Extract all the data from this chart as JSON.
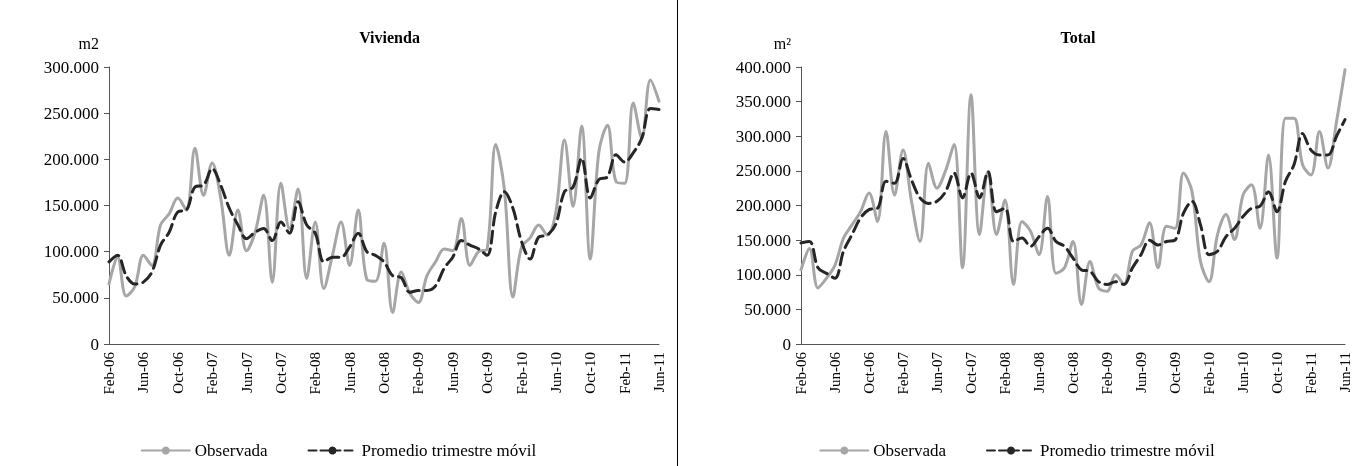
{
  "chart_data": [
    {
      "type": "line",
      "title": "Vivienda",
      "ylabel": "m2",
      "categories": [
        "Feb-06",
        null,
        null,
        null,
        "Jun-06",
        null,
        null,
        null,
        "Oct-06",
        null,
        null,
        null,
        "Feb-07",
        null,
        null,
        null,
        "Jun-07",
        null,
        null,
        null,
        "Oct-07",
        null,
        null,
        null,
        "Feb-08",
        null,
        null,
        null,
        "Jun-08",
        null,
        null,
        null,
        "Oct-08",
        null,
        null,
        null,
        "Feb-09",
        null,
        null,
        null,
        "Jun-09",
        null,
        null,
        null,
        "Oct-09",
        null,
        null,
        null,
        "Feb-10",
        null,
        null,
        null,
        "Jun-10",
        null,
        null,
        null,
        "Oct-10",
        null,
        null,
        null,
        "Feb-11",
        null,
        null,
        null,
        "Jun-11"
      ],
      "series": [
        {
          "name": "Observada",
          "color": "#a6a6a6",
          "line_style": "solid",
          "values": [
            65000,
            94000,
            52000,
            62000,
            96000,
            85000,
            129000,
            141000,
            158000,
            145000,
            212000,
            161000,
            196000,
            158000,
            96000,
            145000,
            101000,
            121000,
            161000,
            67000,
            174000,
            125000,
            168000,
            71000,
            132000,
            60000,
            96000,
            132000,
            85000,
            145000,
            70000,
            68000,
            109000,
            34000,
            78000,
            55000,
            45000,
            74000,
            89000,
            103000,
            101000,
            136000,
            85000,
            100000,
            103000,
            216000,
            168000,
            51000,
            105000,
            115000,
            129000,
            118000,
            143000,
            221000,
            149000,
            236000,
            92000,
            208000,
            237000,
            176000,
            174000,
            261000,
            223000,
            286000,
            263000
          ]
        },
        {
          "name": "Promedio trimestre móvil",
          "color": "#262626",
          "line_style": "dashed",
          "values": [
            89000,
            96000,
            74000,
            65000,
            67000,
            78000,
            107000,
            121000,
            143000,
            145000,
            170000,
            172000,
            190000,
            172000,
            147000,
            129000,
            114000,
            121000,
            125000,
            112000,
            132000,
            120000,
            154000,
            129000,
            120000,
            89000,
            94000,
            94000,
            105000,
            120000,
            100000,
            96000,
            89000,
            74000,
            72000,
            56000,
            58000,
            58000,
            63000,
            82000,
            94000,
            112000,
            107000,
            103000,
            96000,
            143000,
            165000,
            147000,
            111000,
            92000,
            116000,
            118000,
            130000,
            165000,
            170000,
            201000,
            158000,
            178000,
            181000,
            205000,
            197000,
            207000,
            223000,
            255000,
            254000
          ]
        }
      ],
      "ylim": [
        0,
        300000
      ],
      "yticks": [
        {
          "value": 0,
          "label": "0"
        },
        {
          "value": 50000,
          "label": "50.000"
        },
        {
          "value": 100000,
          "label": "100.000"
        },
        {
          "value": 150000,
          "label": "150.000"
        },
        {
          "value": 200000,
          "label": "200.000"
        },
        {
          "value": 250000,
          "label": "250.000"
        },
        {
          "value": 300000,
          "label": "300.000"
        }
      ],
      "grid": false,
      "legend": "bottom",
      "marker": "none"
    },
    {
      "type": "line",
      "title": "Total",
      "ylabel": "m²",
      "categories": [
        "Feb-06",
        null,
        null,
        null,
        "Jun-06",
        null,
        null,
        null,
        "Oct-06",
        null,
        null,
        null,
        "Feb-07",
        null,
        null,
        null,
        "Jun-07",
        null,
        null,
        null,
        "Oct-07",
        null,
        null,
        null,
        "Feb-08",
        null,
        null,
        null,
        "Jun-08",
        null,
        null,
        null,
        "Oct-08",
        null,
        null,
        null,
        "Feb-09",
        null,
        null,
        null,
        "Jun-09",
        null,
        null,
        null,
        "Oct-09",
        null,
        null,
        null,
        "Feb-10",
        null,
        null,
        null,
        "Jun-10",
        null,
        null,
        null,
        "Oct-10",
        null,
        null,
        null,
        "Feb-11",
        null,
        null,
        null,
        "Jun-11"
      ],
      "series": [
        {
          "name": "Observada",
          "color": "#a6a6a6",
          "line_style": "solid",
          "values": [
            107000,
            138000,
            81000,
            95000,
            114000,
            153000,
            172000,
            191000,
            218000,
            177000,
            307000,
            215000,
            280000,
            206000,
            148000,
            261000,
            225000,
            250000,
            288000,
            110000,
            360000,
            158000,
            249000,
            158000,
            208000,
            86000,
            177000,
            163000,
            129000,
            213000,
            102000,
            110000,
            148000,
            57000,
            119000,
            81000,
            76000,
            100000,
            86000,
            134000,
            143000,
            175000,
            110000,
            170000,
            167000,
            247000,
            220000,
            119000,
            90000,
            158000,
            187000,
            151000,
            215000,
            230000,
            167000,
            273000,
            124000,
            326000,
            326000,
            259000,
            244000,
            307000,
            254000,
            321000,
            396000
          ]
        },
        {
          "name": "Promedio trimestre móvil",
          "color": "#262626",
          "line_style": "dashed",
          "values": [
            146000,
            148000,
            110000,
            102000,
            95000,
            134000,
            158000,
            182000,
            194000,
            196000,
            235000,
            232000,
            268000,
            237000,
            211000,
            203000,
            206000,
            220000,
            247000,
            211000,
            247000,
            211000,
            249000,
            191000,
            196000,
            148000,
            153000,
            141000,
            155000,
            167000,
            148000,
            141000,
            124000,
            107000,
            105000,
            90000,
            86000,
            90000,
            86000,
            110000,
            129000,
            150000,
            143000,
            148000,
            150000,
            189000,
            206000,
            172000,
            129000,
            134000,
            155000,
            167000,
            184000,
            196000,
            199000,
            220000,
            191000,
            235000,
            259000,
            304000,
            280000,
            273000,
            273000,
            300000,
            324000
          ]
        }
      ],
      "ylim": [
        0,
        400000
      ],
      "yticks": [
        {
          "value": 0,
          "label": "0"
        },
        {
          "value": 50000,
          "label": "50.000"
        },
        {
          "value": 100000,
          "label": "100.000"
        },
        {
          "value": 150000,
          "label": "150.000"
        },
        {
          "value": 200000,
          "label": "200.000"
        },
        {
          "value": 250000,
          "label": "250.000"
        },
        {
          "value": 300000,
          "label": "300.000"
        },
        {
          "value": 350000,
          "label": "350.000"
        },
        {
          "value": 400000,
          "label": "400.000"
        }
      ],
      "grid": false,
      "legend": "bottom",
      "marker": "none"
    }
  ]
}
